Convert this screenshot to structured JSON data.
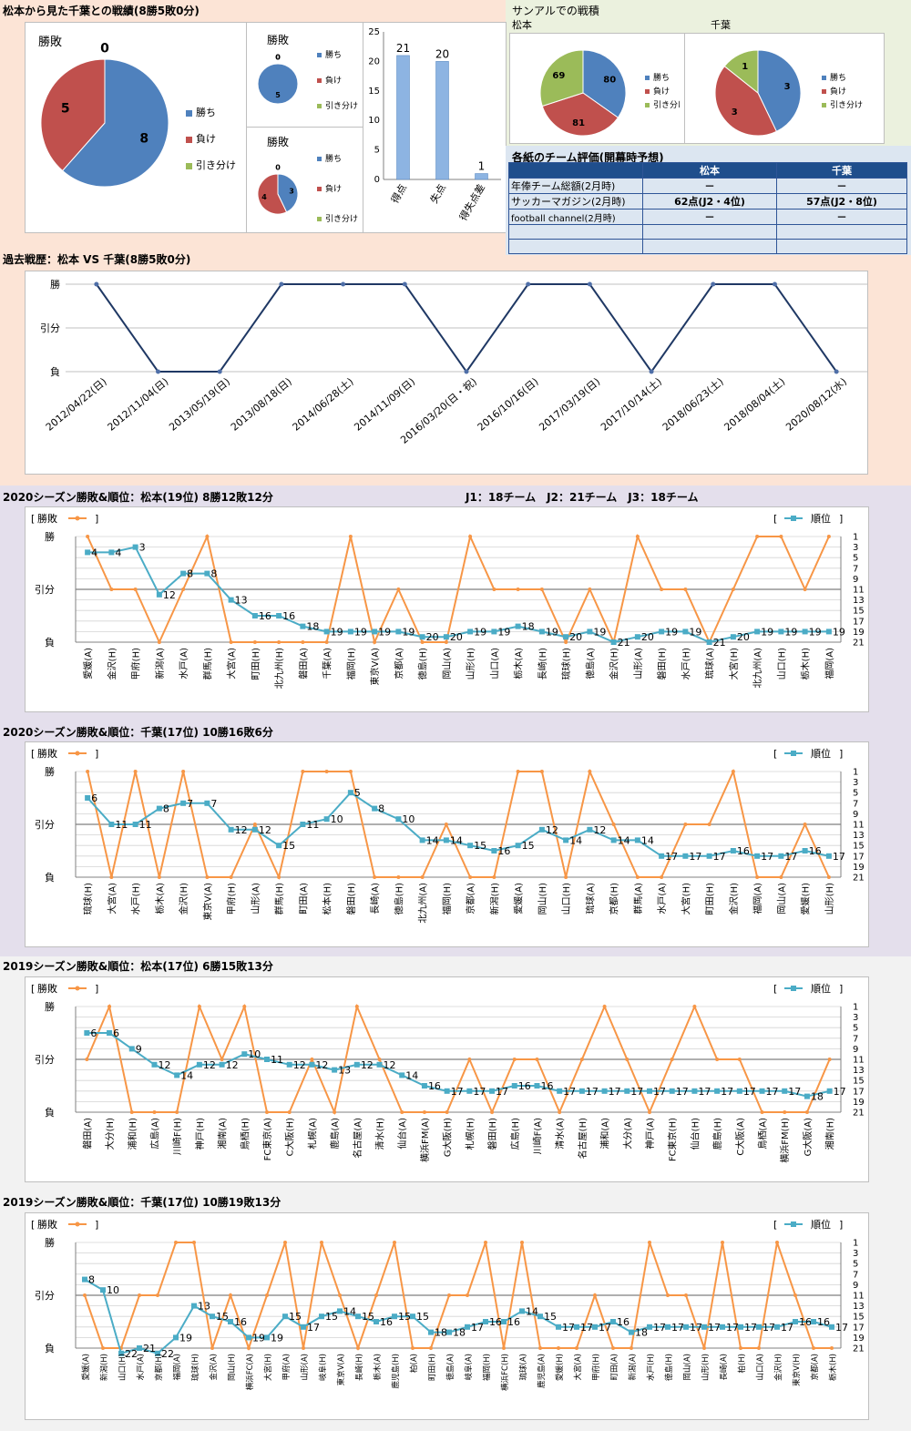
{
  "sections": {
    "record_title": "松本から見た千葉との戦績(8勝5敗0分)",
    "sample_title": "サンアルでの戦積",
    "sample_matsumoto": "松本",
    "sample_chiba": "千葉",
    "eval_title": "各紙のチーム評価(開幕時予想)",
    "history_title": "過去戦歴：松本 VS 千葉(8勝5敗0分)",
    "m2020_title": "2020シーズン勝敗&順位：松本(19位) 8勝12敗12分",
    "teams_note": "J1：18チーム　J2：21チーム　J3：18チーム",
    "c2020_title": "2020シーズン勝敗&順位：千葉(17位) 10勝16敗6分",
    "m2019_title": "2019シーズン勝敗&順位：松本(17位) 6勝15敗13分",
    "c2019_title": "2019シーズン勝敗&順位：千葉(17位) 10勝19敗13分"
  },
  "legend": {
    "win": "勝ち",
    "loss": "負け",
    "draw": "引き分け"
  },
  "evaluation": {
    "headers": [
      "",
      "松本",
      "千葉"
    ],
    "rows": [
      [
        "年俸チーム総額(2月時)",
        "－",
        "－"
      ],
      [
        "サッカーマガジン(2月時)",
        "62点(J2・4位)",
        "57点(J2・8位)"
      ],
      [
        "football channel(2月時)",
        "－",
        "－"
      ],
      [
        "",
        "",
        ""
      ],
      [
        "",
        "",
        ""
      ]
    ]
  },
  "colors": {
    "win": "#4f81bd",
    "loss": "#c0504d",
    "draw": "#9bbb59",
    "result_line": "#f79646",
    "rank_line": "#4bacc6",
    "history_line": "#1f3864"
  },
  "chart_data": [
    {
      "type": "pie",
      "title": "勝敗",
      "labels": [
        "勝ち",
        "負け",
        "引き分け"
      ],
      "values": [
        8,
        5,
        0
      ]
    },
    {
      "type": "pie",
      "title": "勝敗",
      "labels": [
        "勝ち",
        "負け",
        "引き分け"
      ],
      "values": [
        5,
        0,
        0
      ]
    },
    {
      "type": "pie",
      "title": "勝敗",
      "labels": [
        "勝ち",
        "負け",
        "引き分け"
      ],
      "values": [
        3,
        4,
        0
      ]
    },
    {
      "type": "bar",
      "categories": [
        "得点",
        "失点",
        "得失点差"
      ],
      "values": [
        21,
        20,
        1
      ],
      "ylim": [
        0,
        25
      ],
      "yticks": [
        0,
        5,
        10,
        15,
        20,
        25
      ]
    },
    {
      "type": "pie",
      "title": "松本",
      "labels": [
        "勝ち",
        "負け",
        "引き分け"
      ],
      "values": [
        80,
        81,
        69
      ]
    },
    {
      "type": "pie",
      "title": "千葉",
      "labels": [
        "勝ち",
        "負け",
        "引き分け"
      ],
      "values": [
        3,
        3,
        1
      ]
    },
    {
      "type": "line",
      "y_levels": [
        "勝",
        "引分",
        "負"
      ],
      "categories": [
        "2012/04/22(日)",
        "2012/11/04(日)",
        "2013/05/19(日)",
        "2013/08/18(日)",
        "2014/06/28(土)",
        "2014/11/09(日)",
        "2016/03/20(日・祝)",
        "2016/10/16(日)",
        "2017/03/19(日)",
        "2017/10/14(土)",
        "2018/06/23(土)",
        "2018/08/04(土)",
        "2020/08/12(水)"
      ],
      "results": [
        "勝",
        "負",
        "負",
        "勝",
        "勝",
        "勝",
        "負",
        "勝",
        "勝",
        "負",
        "勝",
        "勝",
        "負"
      ]
    },
    {
      "type": "line",
      "series": [
        {
          "name": "勝敗"
        },
        {
          "name": "順位"
        }
      ],
      "y_levels": [
        "勝",
        "引分",
        "負"
      ],
      "rank_ticks": [
        1,
        3,
        5,
        7,
        9,
        11,
        13,
        15,
        17,
        19,
        21
      ],
      "categories": [
        "愛媛(A)",
        "金沢(H)",
        "甲府(H)",
        "新潟(A)",
        "水戸(A)",
        "群馬(H)",
        "大宮(A)",
        "町田(H)",
        "北九州(H)",
        "磐田(A)",
        "千葉(A)",
        "福岡(H)",
        "東京V(A)",
        "京都(A)",
        "徳島(H)",
        "岡山(A)",
        "山形(H)",
        "山口(A)",
        "栃木(A)",
        "長崎(H)",
        "琉球(H)",
        "徳島(A)",
        "金沢(H)",
        "山形(A)",
        "磐田(H)",
        "水戸(H)",
        "琉球(A)",
        "大宮(H)",
        "北九州(A)",
        "山口(H)",
        "栃木(H)",
        "福岡(A)"
      ],
      "results": [
        "勝",
        "引分",
        "引分",
        "負",
        "引分",
        "勝",
        "負",
        "負",
        "負",
        "負",
        "負",
        "勝",
        "負",
        "引分",
        "負",
        "負",
        "勝",
        "引分",
        "引分",
        "引分",
        "負",
        "引分",
        "負",
        "勝",
        "引分",
        "引分",
        "負",
        "引分",
        "勝",
        "勝",
        "引分",
        "勝"
      ],
      "ranks": [
        4,
        4,
        3,
        12,
        8,
        8,
        13,
        16,
        16,
        18,
        19,
        19,
        19,
        19,
        20,
        20,
        19,
        19,
        18,
        19,
        20,
        19,
        21,
        20,
        19,
        19,
        21,
        20,
        19,
        19,
        19,
        19
      ]
    },
    {
      "type": "line",
      "series": [
        {
          "name": "勝敗"
        },
        {
          "name": "順位"
        }
      ],
      "y_levels": [
        "勝",
        "引分",
        "負"
      ],
      "rank_ticks": [
        1,
        3,
        5,
        7,
        9,
        11,
        13,
        15,
        17,
        19,
        21
      ],
      "categories": [
        "琉球(H)",
        "大宮(A)",
        "水戸(H)",
        "栃木(A)",
        "金沢(H)",
        "東京V(A)",
        "甲府(H)",
        "山形(A)",
        "群馬(H)",
        "町田(A)",
        "松本(H)",
        "磐田(H)",
        "長崎(A)",
        "徳島(H)",
        "北九州(A)",
        "福岡(H)",
        "京都(A)",
        "新潟(H)",
        "愛媛(A)",
        "岡山(H)",
        "山口(H)",
        "琉球(A)",
        "京都(H)",
        "群馬(A)",
        "水戸(A)",
        "大宮(H)",
        "町田(H)",
        "金沢(H)",
        "福岡(A)",
        "岡山(A)",
        "愛媛(H)",
        "山形(H)"
      ],
      "results": [
        "勝",
        "負",
        "勝",
        "負",
        "勝",
        "負",
        "負",
        "引分",
        "負",
        "勝",
        "勝",
        "勝",
        "負",
        "負",
        "負",
        "引分",
        "負",
        "負",
        "勝",
        "勝",
        "負",
        "勝",
        "引分",
        "負",
        "負",
        "引分",
        "引分",
        "勝",
        "負",
        "負",
        "引分",
        "負"
      ],
      "ranks": [
        6,
        11,
        11,
        8,
        7,
        7,
        12,
        12,
        15,
        11,
        10,
        5,
        8,
        10,
        14,
        14,
        15,
        16,
        15,
        12,
        14,
        12,
        14,
        14,
        17,
        17,
        17,
        16,
        17,
        17,
        16,
        17
      ]
    },
    {
      "type": "line",
      "series": [
        {
          "name": "勝敗"
        },
        {
          "name": "順位"
        }
      ],
      "y_levels": [
        "勝",
        "引分",
        "負"
      ],
      "rank_ticks": [
        1,
        3,
        5,
        7,
        9,
        11,
        13,
        15,
        17,
        19,
        21
      ],
      "categories": [
        "磐田(A)",
        "大分(H)",
        "浦和(H)",
        "広島(A)",
        "川崎F(H)",
        "神戸(H)",
        "湘南(A)",
        "鳥栖(H)",
        "FC東京(A)",
        "C大阪(H)",
        "札幌(A)",
        "鹿島(A)",
        "名古屋(A)",
        "清水(H)",
        "仙台(A)",
        "横浜FM(A)",
        "G大阪(H)",
        "札幌(H)",
        "磐田(H)",
        "広島(H)",
        "川崎F(A)",
        "清水(A)",
        "名古屋(H)",
        "浦和(A)",
        "大分(A)",
        "神戸(A)",
        "FC東京(H)",
        "仙台(H)",
        "鹿島(H)",
        "C大阪(A)",
        "鳥栖(A)",
        "横浜FM(H)",
        "G大阪(A)",
        "湘南(H)"
      ],
      "results": [
        "引分",
        "勝",
        "負",
        "負",
        "負",
        "勝",
        "引分",
        "勝",
        "負",
        "負",
        "引分",
        "負",
        "勝",
        "引分",
        "負",
        "負",
        "負",
        "引分",
        "負",
        "引分",
        "引分",
        "負",
        "引分",
        "勝",
        "引分",
        "負",
        "引分",
        "勝",
        "引分",
        "引分",
        "負",
        "負",
        "負",
        "引分"
      ],
      "ranks": [
        6,
        6,
        9,
        12,
        14,
        12,
        12,
        10,
        11,
        12,
        12,
        13,
        12,
        12,
        14,
        16,
        17,
        17,
        17,
        16,
        16,
        17,
        17,
        17,
        17,
        17,
        17,
        17,
        17,
        17,
        17,
        17,
        18,
        17
      ]
    },
    {
      "type": "line",
      "series": [
        {
          "name": "勝敗"
        },
        {
          "name": "順位"
        }
      ],
      "y_levels": [
        "勝",
        "引分",
        "負"
      ],
      "rank_ticks": [
        1,
        3,
        5,
        7,
        9,
        11,
        13,
        15,
        17,
        19,
        21
      ],
      "categories": [
        "愛媛(A)",
        "新潟(H)",
        "山口(H)",
        "水戸(A)",
        "京都(H)",
        "福岡(A)",
        "琉球(H)",
        "金沢(A)",
        "岡山(H)",
        "横浜FC(A)",
        "大宮(H)",
        "甲府(A)",
        "山形(A)",
        "岐阜(H)",
        "東京V(A)",
        "長崎(H)",
        "栃木(A)",
        "鹿児島(H)",
        "柏(A)",
        "町田(H)",
        "徳島(A)",
        "岐阜(A)",
        "福岡(H)",
        "横浜FC(H)",
        "琉球(A)",
        "鹿児島(A)",
        "愛媛(H)",
        "大宮(A)",
        "甲府(H)",
        "町田(A)",
        "新潟(A)",
        "水戸(H)",
        "徳島(H)",
        "岡山(A)",
        "山形(H)",
        "長崎(A)",
        "柏(H)",
        "山口(A)",
        "金沢(H)",
        "東京V(H)",
        "京都(A)",
        "栃木(H)"
      ],
      "results": [
        "引分",
        "負",
        "負",
        "引分",
        "引分",
        "勝",
        "勝",
        "負",
        "引分",
        "負",
        "引分",
        "勝",
        "負",
        "勝",
        "引分",
        "負",
        "引分",
        "勝",
        "負",
        "負",
        "引分",
        "引分",
        "勝",
        "負",
        "勝",
        "負",
        "負",
        "負",
        "引分",
        "負",
        "負",
        "勝",
        "引分",
        "引分",
        "負",
        "勝",
        "負",
        "負",
        "勝",
        "引分",
        "負",
        "負"
      ],
      "ranks": [
        8,
        10,
        22,
        21,
        22,
        19,
        13,
        15,
        16,
        19,
        19,
        15,
        17,
        15,
        14,
        15,
        16,
        15,
        15,
        18,
        18,
        17,
        16,
        16,
        14,
        15,
        17,
        17,
        17,
        16,
        18,
        17,
        17,
        17,
        17,
        17,
        17,
        17,
        17,
        16,
        16,
        17
      ]
    }
  ]
}
